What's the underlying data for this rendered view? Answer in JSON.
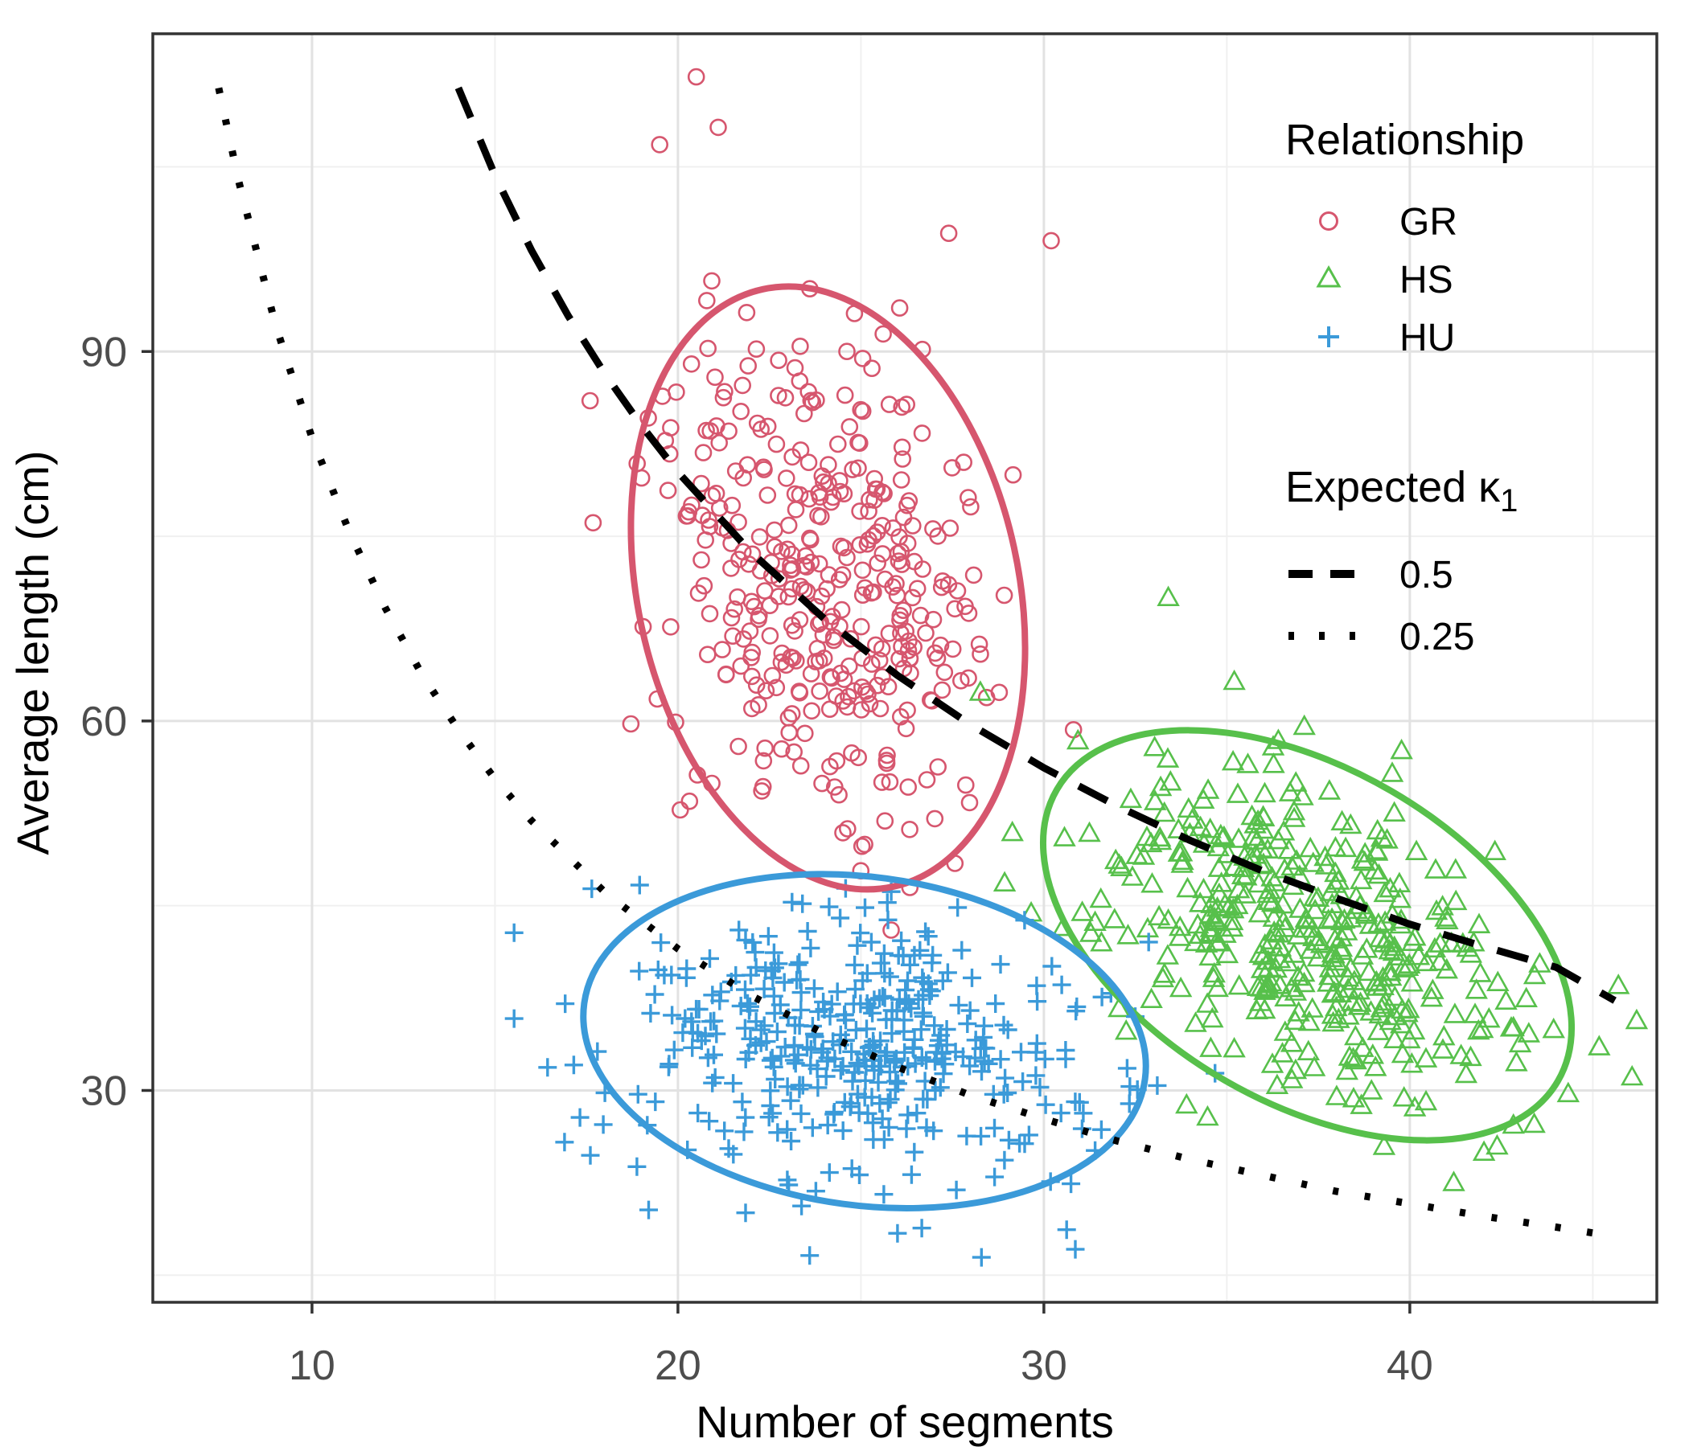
{
  "chart_data": {
    "type": "scatter",
    "title": "",
    "xlabel": "Number of segments",
    "ylabel": "Average length (cm)",
    "xlim": [
      5.65,
      46.75
    ],
    "ylim": [
      12.8,
      115.8
    ],
    "x_ticks": [
      10,
      20,
      30,
      40
    ],
    "y_ticks": [
      30,
      60,
      90
    ],
    "x_minor_ticks": [
      15,
      25,
      35,
      45
    ],
    "y_minor_ticks": [
      15,
      45,
      75,
      105
    ],
    "grid": "major+minor",
    "legend_position": "inside-top-right",
    "ellipse_confidence": 0.95,
    "series": [
      {
        "name": "GR",
        "marker": "circle",
        "color": "#D6566E",
        "n": 380,
        "mean": [
          24.1,
          70.8
        ],
        "sd": [
          2.2,
          10.0
        ],
        "corr": -0.2,
        "seed": 101,
        "extra_points": [
          [
            20.5,
            112.3
          ],
          [
            21.1,
            108.2
          ],
          [
            19.5,
            106.8
          ],
          [
            27.4,
            99.6
          ],
          [
            30.2,
            99.0
          ],
          [
            17.6,
            86.0
          ]
        ]
      },
      {
        "name": "HS",
        "marker": "triangle",
        "color": "#57C04B",
        "n": 410,
        "mean": [
          37.2,
          42.6
        ],
        "sd": [
          2.95,
          6.8
        ],
        "corr": -0.45,
        "seed": 202,
        "extra_points": [
          [
            45.7,
            38.5
          ],
          [
            41.2,
            22.5
          ],
          [
            33.9,
            28.8
          ],
          [
            33.4,
            70.0
          ]
        ]
      },
      {
        "name": "HU",
        "marker": "plus",
        "color": "#3B9AD9",
        "n": 400,
        "mean": [
          25.1,
          34.0
        ],
        "sd": [
          3.14,
          5.54
        ],
        "corr": -0.15,
        "seed": 303,
        "extra_points": [
          [
            23.6,
            16.6
          ],
          [
            26.0,
            18.4
          ],
          [
            33.1,
            30.4
          ],
          [
            19.2,
            20.3
          ],
          [
            16.9,
            25.8
          ]
        ]
      }
    ],
    "curves": [
      {
        "name": "0.5",
        "style": "dashed",
        "color": "#000000",
        "points": [
          [
            14,
            111.4
          ],
          [
            15,
            104.3
          ],
          [
            16,
            98.2
          ],
          [
            17,
            92.9
          ],
          [
            18,
            88.2
          ],
          [
            19,
            84.0
          ],
          [
            20,
            80.2
          ],
          [
            22,
            73.7
          ],
          [
            24,
            68.3
          ],
          [
            26,
            63.7
          ],
          [
            28,
            59.7
          ],
          [
            30,
            56.2
          ],
          [
            32,
            53.1
          ],
          [
            34,
            50.3
          ],
          [
            36,
            47.8
          ],
          [
            38,
            45.6
          ],
          [
            40,
            43.5
          ],
          [
            42,
            41.7
          ],
          [
            44,
            40.0
          ],
          [
            45.6,
            37.3
          ]
        ]
      },
      {
        "name": "0.25",
        "style": "dotted",
        "color": "#000000",
        "points": [
          [
            7.45,
            111.4
          ],
          [
            8,
            103.8
          ],
          [
            9,
            92.2
          ],
          [
            10,
            83.0
          ],
          [
            11,
            75.5
          ],
          [
            12,
            69.2
          ],
          [
            13,
            63.8
          ],
          [
            14,
            59.3
          ],
          [
            15,
            55.3
          ],
          [
            16,
            51.9
          ],
          [
            18,
            46.1
          ],
          [
            20,
            41.5
          ],
          [
            22,
            37.7
          ],
          [
            24,
            34.6
          ],
          [
            26,
            31.9
          ],
          [
            28,
            29.6
          ],
          [
            30,
            27.7
          ],
          [
            32,
            25.9
          ],
          [
            34,
            24.4
          ],
          [
            36,
            23.1
          ],
          [
            38,
            21.8
          ],
          [
            40,
            20.8
          ],
          [
            42,
            19.8
          ],
          [
            44,
            18.9
          ],
          [
            45.5,
            18.2
          ]
        ]
      }
    ]
  },
  "legend_relationship": {
    "title": "Relationship",
    "items": [
      {
        "label": "GR",
        "marker": "circle-icon"
      },
      {
        "label": "HS",
        "marker": "triangle-icon"
      },
      {
        "label": "HU",
        "marker": "plus-icon"
      }
    ]
  },
  "legend_kappa": {
    "title_main": "Expected κ",
    "title_sub": "1",
    "items": [
      {
        "label": "0.5",
        "style": "dashed"
      },
      {
        "label": "0.25",
        "style": "dotted"
      }
    ]
  },
  "colors": {
    "panel_border": "#333333",
    "tick_mark": "#333333",
    "tick_label": "#4d4d4d",
    "grid_major": "#e2e2e2",
    "grid_minor": "#f0f0f0",
    "background": "#ffffff"
  }
}
